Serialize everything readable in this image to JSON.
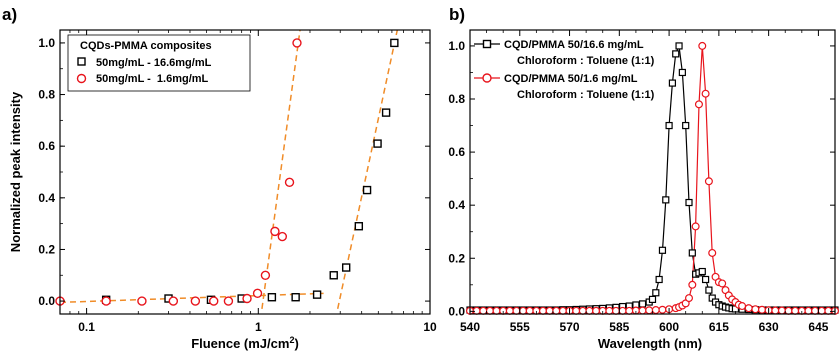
{
  "chart_data": [
    {
      "panel_label": "a)",
      "type": "scatter",
      "x_scale": "log",
      "xlim": [
        0.07,
        10
      ],
      "ylim": [
        -0.05,
        1.05
      ],
      "xlabel_main": "Fluence (mJ/cm",
      "xlabel_sup": "2",
      "xlabel_end": ")",
      "ylabel": "Normalized peak intensity",
      "x_ticks": [
        {
          "value": 0.1,
          "label": "0.1"
        },
        {
          "value": 1,
          "label": "1"
        },
        {
          "value": 10,
          "label": "10"
        }
      ],
      "y_ticks": [
        {
          "value": 0.0,
          "label": "0.0"
        },
        {
          "value": 0.2,
          "label": "0.2"
        },
        {
          "value": 0.4,
          "label": "0.4"
        },
        {
          "value": 0.6,
          "label": "0.6"
        },
        {
          "value": 0.8,
          "label": "0.8"
        },
        {
          "value": 1.0,
          "label": "1.0"
        }
      ],
      "legend": {
        "title": "CQDs-PMMA composites",
        "placement": "top-left",
        "entries": [
          "50mg/mL - 16.6mg/mL",
          "50mg/mL -  1.6mg/mL"
        ]
      },
      "series": [
        {
          "name": "50mg/mL - 16.6mg/mL",
          "marker": "square",
          "color": "#000000",
          "x": [
            0.13,
            0.3,
            0.53,
            0.8,
            1.2,
            1.65,
            2.2,
            2.75,
            3.25,
            3.85,
            4.3,
            4.95,
            5.55,
            6.2
          ],
          "y": [
            0.005,
            0.01,
            0.005,
            0.01,
            0.015,
            0.015,
            0.025,
            0.1,
            0.13,
            0.29,
            0.43,
            0.61,
            0.73,
            1.0
          ]
        },
        {
          "name": "50mg/mL -  1.6mg/mL",
          "marker": "circle",
          "color": "#e8141c",
          "x": [
            0.07,
            0.13,
            0.21,
            0.32,
            0.43,
            0.55,
            0.67,
            0.86,
            0.99,
            1.1,
            1.25,
            1.38,
            1.52,
            1.68
          ],
          "y": [
            0.0,
            0.0,
            0.0,
            0.0,
            0.0,
            0.0,
            0.0,
            0.01,
            0.03,
            0.1,
            0.27,
            0.25,
            0.46,
            1.0
          ]
        }
      ],
      "fit_lines": [
        {
          "color": "#f08c28",
          "from": [
            0.07,
            -0.005
          ],
          "to": [
            2.4,
            0.03
          ]
        },
        {
          "color": "#f08c28",
          "from": [
            1.05,
            -0.03
          ],
          "to": [
            1.75,
            1.05
          ]
        },
        {
          "color": "#f08c28",
          "from": [
            2.9,
            -0.03
          ],
          "to": [
            6.45,
            1.05
          ]
        }
      ]
    },
    {
      "panel_label": "b)",
      "type": "line",
      "xlim": [
        540,
        650
      ],
      "ylim": [
        -0.01,
        1.06
      ],
      "xlabel": "Wavelength (nm)",
      "ylabel": "",
      "x_ticks": [
        {
          "value": 540,
          "label": "540"
        },
        {
          "value": 555,
          "label": "555"
        },
        {
          "value": 570,
          "label": "570"
        },
        {
          "value": 585,
          "label": "585"
        },
        {
          "value": 600,
          "label": "600"
        },
        {
          "value": 615,
          "label": "615"
        },
        {
          "value": 630,
          "label": "630"
        },
        {
          "value": 645,
          "label": "645"
        }
      ],
      "y_ticks": [
        {
          "value": 0.0,
          "label": "0.0"
        },
        {
          "value": 0.2,
          "label": "0.2"
        },
        {
          "value": 0.4,
          "label": "0.4"
        },
        {
          "value": 0.6,
          "label": "0.6"
        },
        {
          "value": 0.8,
          "label": "0.8"
        },
        {
          "value": 1.0,
          "label": "1.0"
        }
      ],
      "legend": {
        "placement": "top-left",
        "entries": [
          {
            "line1": "CQD/PMMA 50/16.6 mg/mL",
            "line2": "Chloroform : Toluene (1:1)"
          },
          {
            "line1": "CQD/PMMA 50/1.6 mg/mL",
            "line2": "Chloroform : Toluene (1:1)"
          }
        ]
      },
      "series": [
        {
          "name": "CQD/PMMA 50/16.6 mg/mL",
          "marker": "square",
          "color": "#000000",
          "x": [
            540,
            542,
            544,
            546,
            548,
            550,
            552,
            554,
            556,
            558,
            560,
            562,
            564,
            566,
            568,
            570,
            572,
            574,
            576,
            578,
            580,
            582,
            584,
            586,
            588,
            590,
            592,
            594,
            595,
            596,
            597,
            598,
            599,
            600,
            601,
            602,
            603,
            604,
            605,
            606,
            607,
            608,
            609,
            610,
            611,
            612,
            613,
            614,
            615,
            616,
            617,
            618,
            619,
            620,
            622,
            624,
            626,
            628,
            630,
            632,
            634,
            636,
            638,
            640,
            642,
            644,
            646,
            648,
            650
          ],
          "y": [
            0.005,
            0.005,
            0.005,
            0.005,
            0.005,
            0.005,
            0.005,
            0.005,
            0.005,
            0.005,
            0.005,
            0.005,
            0.005,
            0.005,
            0.006,
            0.006,
            0.007,
            0.008,
            0.009,
            0.01,
            0.011,
            0.013,
            0.015,
            0.018,
            0.02,
            0.024,
            0.028,
            0.035,
            0.045,
            0.07,
            0.12,
            0.23,
            0.42,
            0.7,
            0.86,
            0.97,
            1.0,
            0.9,
            0.7,
            0.41,
            0.22,
            0.14,
            0.145,
            0.15,
            0.12,
            0.08,
            0.05,
            0.035,
            0.025,
            0.02,
            0.016,
            0.013,
            0.01,
            0.009,
            0.008,
            0.007,
            0.006,
            0.005,
            0.005,
            0.005,
            0.005,
            0.005,
            0.005,
            0.005,
            0.005,
            0.005,
            0.005,
            0.005,
            0.005
          ]
        },
        {
          "name": "CQD/PMMA 50/1.6 mg/mL",
          "marker": "circle",
          "color": "#e8141c",
          "x": [
            540,
            542,
            544,
            546,
            548,
            550,
            552,
            554,
            556,
            558,
            560,
            562,
            564,
            566,
            568,
            570,
            572,
            574,
            576,
            578,
            580,
            582,
            584,
            586,
            588,
            590,
            592,
            594,
            596,
            598,
            600,
            602,
            603,
            604,
            605,
            606,
            607,
            608,
            609,
            610,
            611,
            612,
            613,
            614,
            615,
            616,
            617,
            618,
            619,
            620,
            621,
            622,
            624,
            626,
            628,
            630,
            632,
            634,
            636,
            638,
            640,
            642,
            644,
            646,
            648,
            650
          ],
          "y": [
            0.002,
            0.002,
            0.002,
            0.002,
            0.002,
            0.002,
            0.002,
            0.002,
            0.002,
            0.002,
            0.002,
            0.002,
            0.002,
            0.002,
            0.002,
            0.002,
            0.002,
            0.002,
            0.002,
            0.002,
            0.002,
            0.002,
            0.002,
            0.002,
            0.002,
            0.003,
            0.003,
            0.004,
            0.005,
            0.006,
            0.008,
            0.012,
            0.016,
            0.022,
            0.03,
            0.05,
            0.1,
            0.32,
            0.78,
            1.0,
            0.82,
            0.49,
            0.22,
            0.13,
            0.11,
            0.105,
            0.08,
            0.06,
            0.045,
            0.035,
            0.025,
            0.02,
            0.012,
            0.008,
            0.006,
            0.004,
            0.003,
            0.003,
            0.002,
            0.002,
            0.002,
            0.002,
            0.002,
            0.002,
            0.002,
            0.002
          ]
        }
      ]
    }
  ]
}
